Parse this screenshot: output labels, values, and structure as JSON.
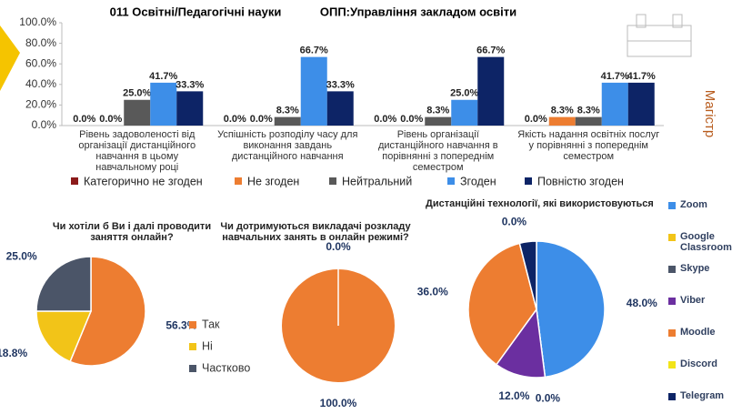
{
  "side_label": "Магістр",
  "chart_data": [
    {
      "type": "bar",
      "title": "011 Освітні/Педагогічні науки",
      "subtitle": "ОПП:Управління закладом освіти",
      "categories": [
        "Рівень задоволеності  від організації дистанційного навчання в цьому навчальному році",
        "Успішність розподілу часу для виконання завдань дистанційного навчання",
        "Рівень організації дистанційного навчання в порівнянні з попереднім семестром",
        "Якість надання освітніх послуг у порівнянні з попереднім семестром"
      ],
      "series": [
        {
          "name": "Категорично не згоден",
          "color": "#8b1a1a",
          "values": [
            0,
            0,
            0,
            0
          ],
          "value_labels": [
            "0.0%",
            "0.0%",
            "0.0%",
            "0.0%"
          ]
        },
        {
          "name": "Не згоден",
          "color": "#ed7d31",
          "values": [
            0,
            0,
            0,
            8.3
          ],
          "value_labels": [
            "0.0%",
            "0.0%",
            "0.0%",
            "8.3%"
          ]
        },
        {
          "name": "Нейтральний",
          "color": "#595959",
          "values": [
            25,
            8.3,
            8.3,
            8.3
          ],
          "value_labels": [
            "25.0%",
            "8.3%",
            "8.3%",
            "8.3%"
          ]
        },
        {
          "name": "Згоден",
          "color": "#3d8ee8",
          "values": [
            41.7,
            66.7,
            25,
            41.7
          ],
          "value_labels": [
            "41.7%",
            "66.7%",
            "25.0%",
            "41.7%"
          ]
        },
        {
          "name": "Повністю згоден",
          "color": "#0d2466",
          "values": [
            33.3,
            33.3,
            66.7,
            41.7
          ],
          "value_labels": [
            "33.3%",
            "33.3%",
            "66.7%",
            "41.7%"
          ]
        }
      ],
      "ylim": [
        0,
        100
      ],
      "yticks": [
        {
          "value": 0,
          "label": "0.0%"
        },
        {
          "value": 20,
          "label": "20.0%"
        },
        {
          "value": 40,
          "label": "40.0%"
        },
        {
          "value": 60,
          "label": "60.0%"
        },
        {
          "value": 80,
          "label": "80.0%"
        },
        {
          "value": 100,
          "label": "100.0%"
        }
      ],
      "legend": "bottom"
    },
    {
      "type": "pie",
      "title": "Чи хотіли б Ви і далі проводити заняття онлайн?",
      "categories": [
        "Так",
        "Ні",
        "Частково"
      ],
      "values": [
        56.3,
        18.8,
        25
      ],
      "value_labels": [
        "56.3%",
        "18.8%",
        "25.0%"
      ],
      "colors": [
        "#ed7d31",
        "#f2c418",
        "#4b5568"
      ],
      "legend": "right"
    },
    {
      "type": "pie",
      "title": "Чи дотримуються викладачі розкладу навчальних занять в онлайн режимі?",
      "values": [
        100,
        0
      ],
      "value_labels": [
        "100.0%",
        "0.0%"
      ],
      "colors": [
        "#ed7d31",
        "#3d8ee8"
      ]
    },
    {
      "type": "pie",
      "title": "Дистанційні технології, які використовуються",
      "categories": [
        "Zoom",
        "Google Classroom",
        "Skype",
        "Viber",
        "Moodle",
        "Discord",
        "Telegram"
      ],
      "values": [
        48,
        0,
        0,
        12,
        36,
        0,
        4
      ],
      "value_labels": [
        "48.0%",
        "0.0%",
        null,
        "12.0%",
        "36.0%",
        "0.0%",
        null
      ],
      "colors": [
        "#3d8ee8",
        "#f2c418",
        "#4b5568",
        "#6b2fa0",
        "#ed7d31",
        "#f2e418",
        "#0d2466"
      ],
      "legend": "right"
    }
  ]
}
